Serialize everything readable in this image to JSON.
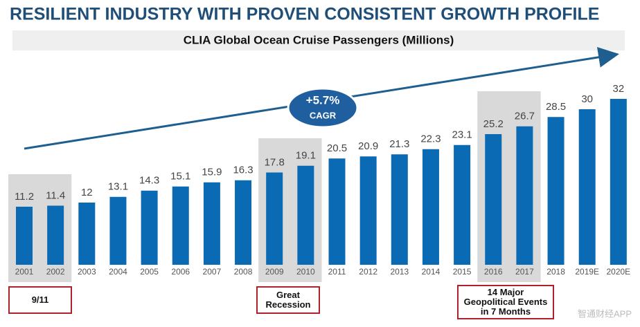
{
  "chart_data": {
    "type": "bar",
    "title": "RESILIENT INDUSTRY WITH PROVEN CONSISTENT GROWTH PROFILE",
    "subtitle": "CLIA Global Ocean Cruise Passengers (Millions)",
    "categories": [
      "2001",
      "2002",
      "2003",
      "2004",
      "2005",
      "2006",
      "2007",
      "2008",
      "2009",
      "2010",
      "2011",
      "2012",
      "2013",
      "2014",
      "2015",
      "2016",
      "2017",
      "2018",
      "2019E",
      "2020E"
    ],
    "values": [
      11.2,
      11.4,
      12,
      13.1,
      14.3,
      15.1,
      15.9,
      16.3,
      17.8,
      19.1,
      20.5,
      20.9,
      21.3,
      22.3,
      23.1,
      25.2,
      26.7,
      28.5,
      30,
      32
    ],
    "color": "#0a6ab3",
    "cagr": {
      "value": "+5.7%",
      "label": "CAGR"
    },
    "annotations": [
      "9/11",
      "Great Recession",
      "14 Major Geopolitical Events in 7 Months"
    ],
    "watermark": "智通财经APP"
  }
}
